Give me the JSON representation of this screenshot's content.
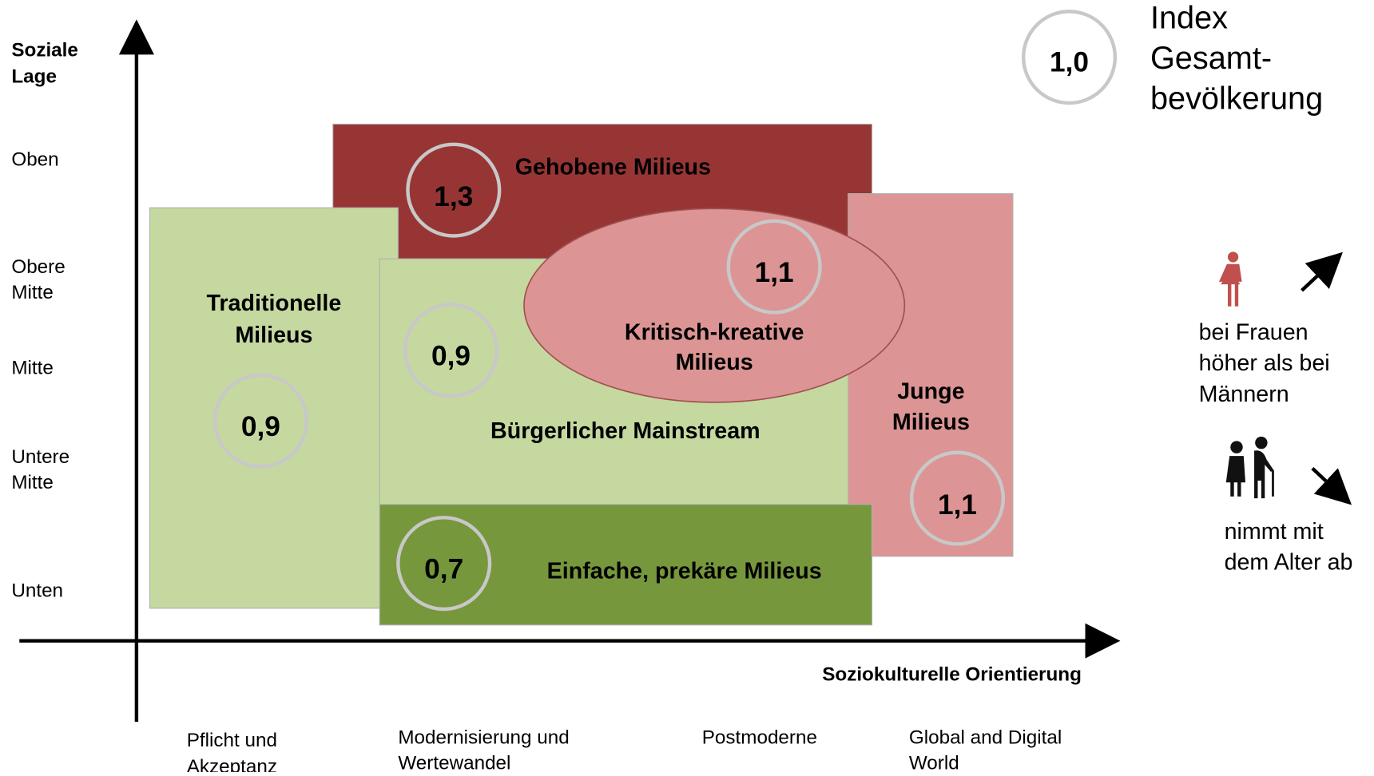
{
  "y_axis": {
    "label": [
      "Soziale",
      "Lage"
    ],
    "levels": [
      [
        "Oben"
      ],
      [
        "Obere",
        "Mitte"
      ],
      [
        "Mitte"
      ],
      [
        "Untere",
        "Mitte"
      ],
      [
        "Unten"
      ]
    ]
  },
  "x_axis": {
    "label": "Soziokulturelle Orientierung",
    "levels": [
      [
        "Pflicht und",
        "Akzeptanz"
      ],
      [
        "Modernisierung und",
        "Wertewandel"
      ],
      [
        "Postmoderne"
      ],
      [
        "Global and Digital",
        "World"
      ]
    ]
  },
  "milieus": [
    {
      "name": [
        "Gehobene Milieus"
      ],
      "index": "1,3"
    },
    {
      "name": [
        "Traditionelle",
        "Milieus"
      ],
      "index": "0,9"
    },
    {
      "name": [
        "Bürgerlicher Mainstream"
      ],
      "index": "0,9"
    },
    {
      "name": [
        "Junge",
        "Milieus"
      ],
      "index": "1,1"
    },
    {
      "name": [
        "Einfache, prekäre Milieus"
      ],
      "index": "0,7"
    },
    {
      "name": [
        "Kritisch-kreative",
        "Milieus"
      ],
      "index": "1,1"
    }
  ],
  "legend": {
    "index": "1,0",
    "label": [
      "Index",
      "Gesamt-",
      "bevölkerung"
    ]
  },
  "notes": [
    {
      "text": [
        "bei Frauen",
        "höher als bei",
        "Männern"
      ]
    },
    {
      "text": [
        "nimmt mit",
        "dem Alter ab"
      ]
    }
  ]
}
